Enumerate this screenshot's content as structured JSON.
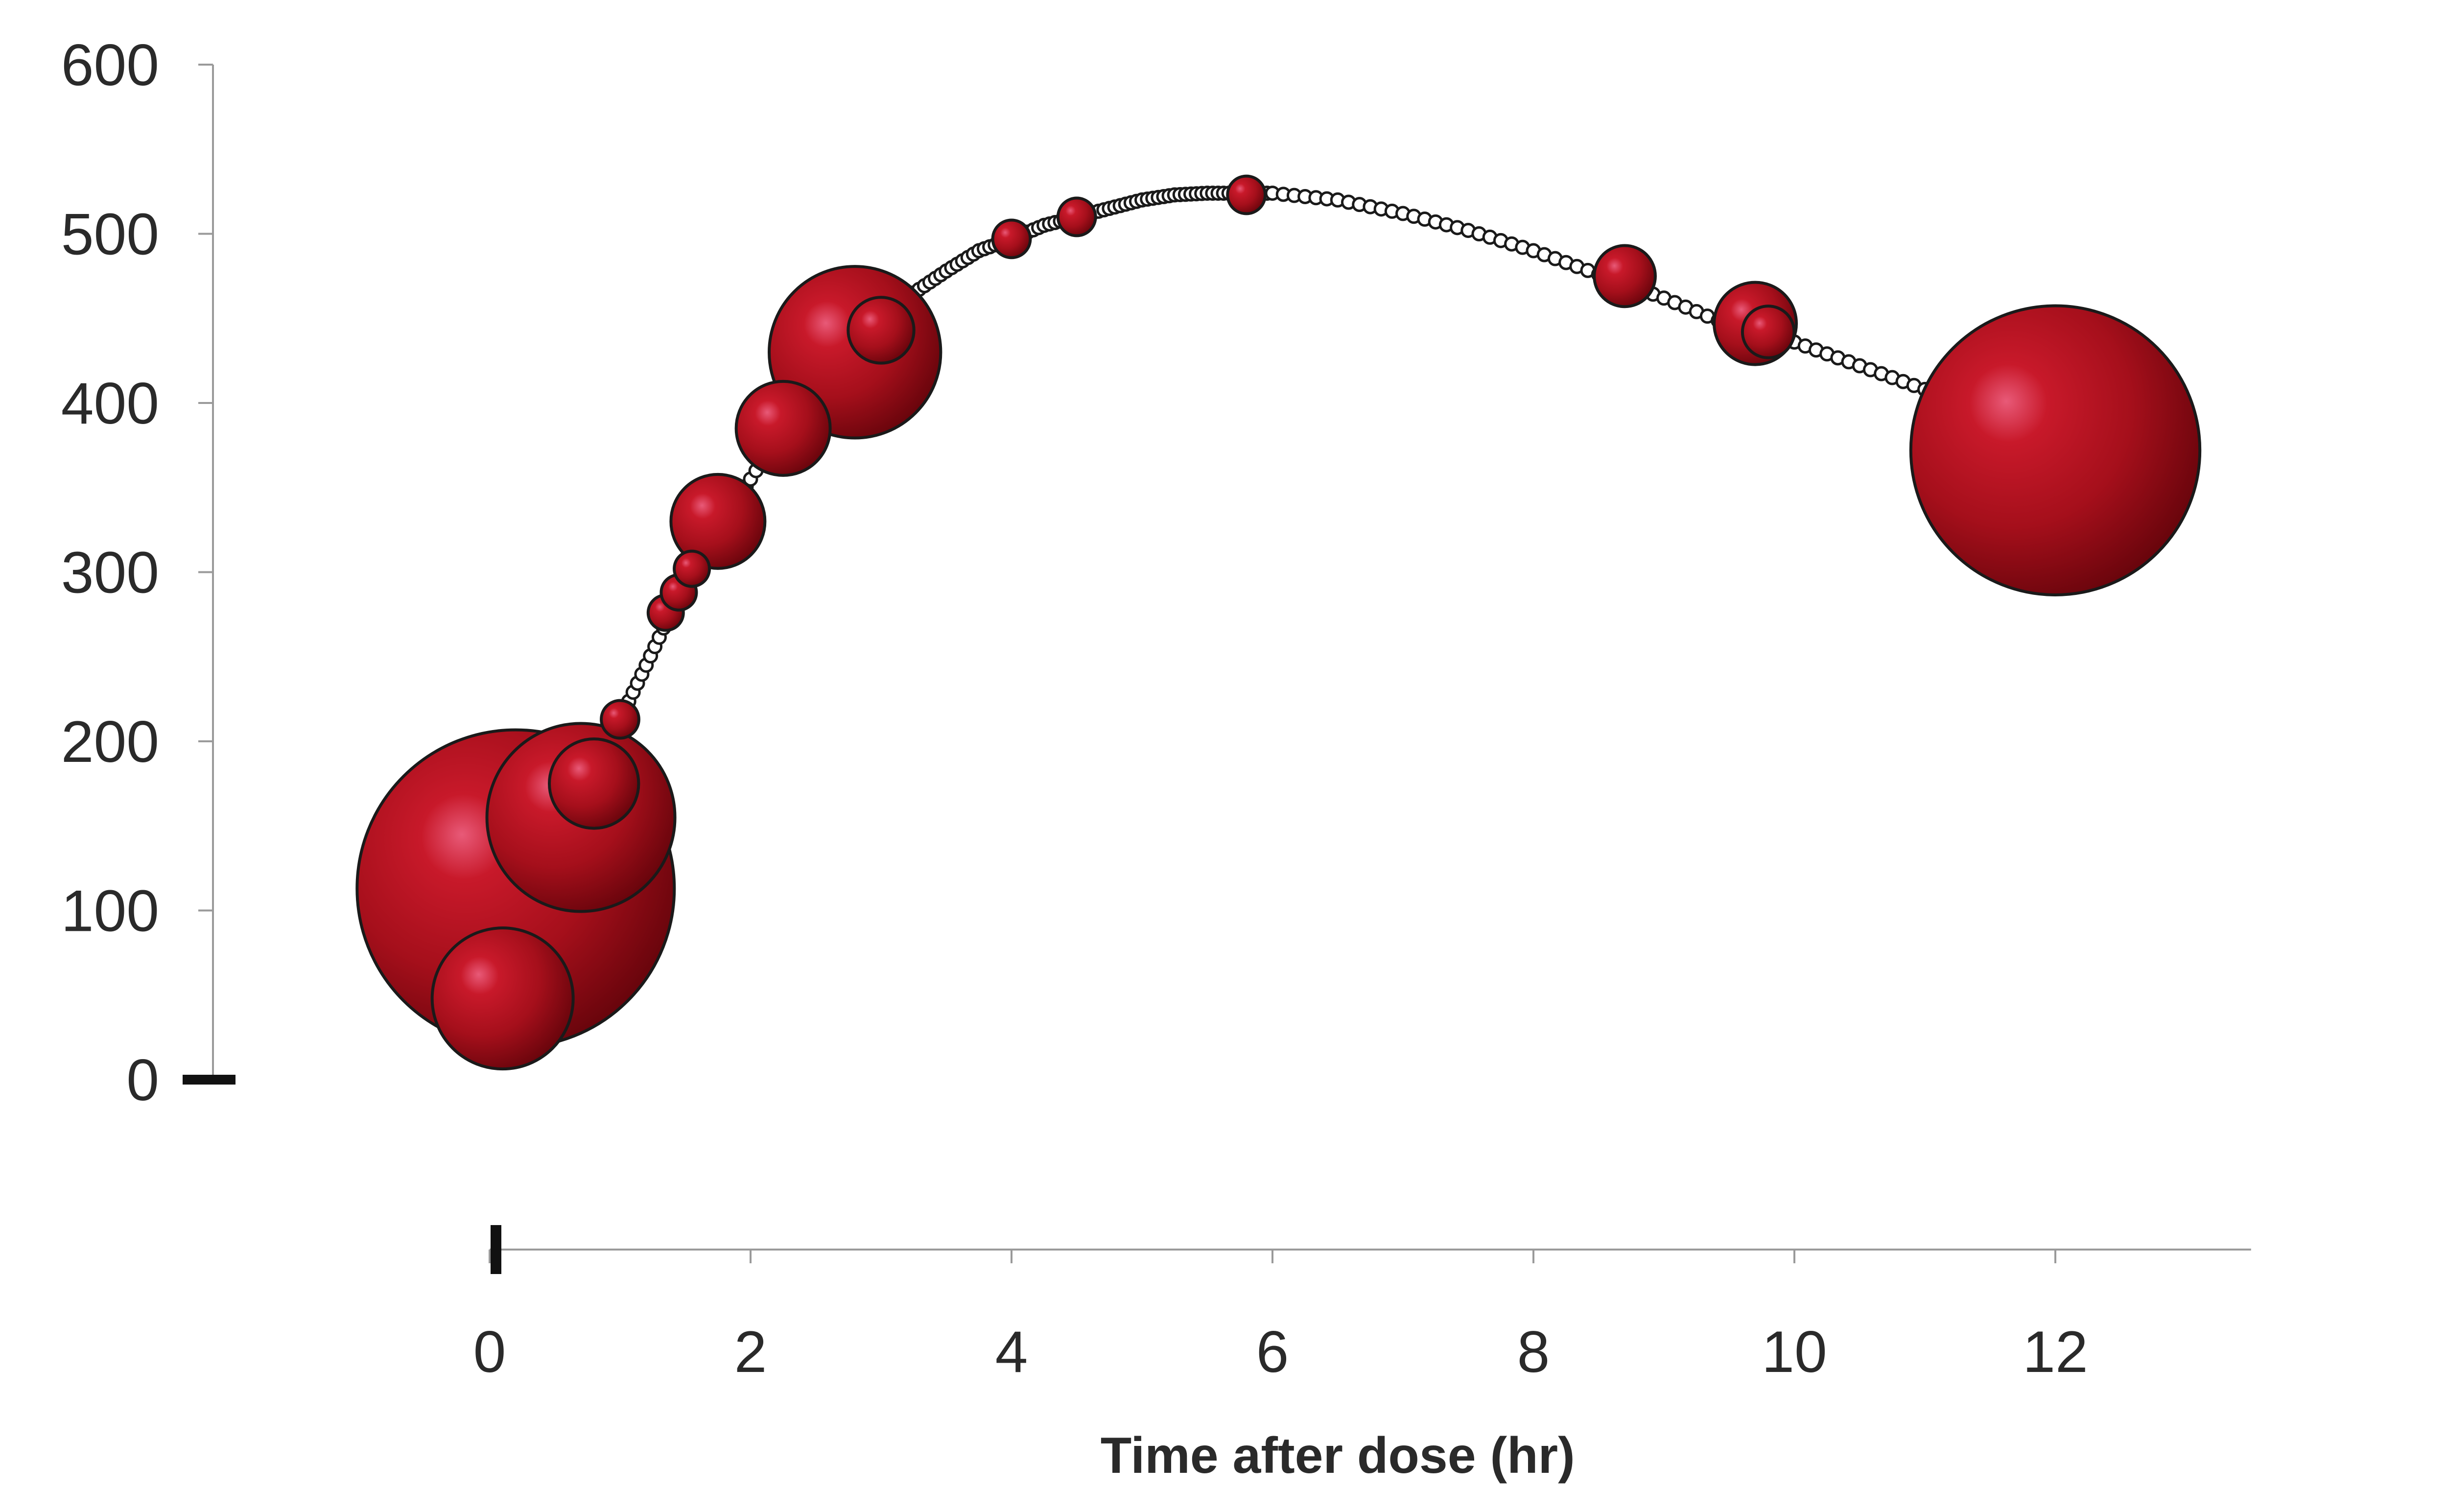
{
  "chart_data": {
    "type": "scatter",
    "subtype": "bubble-over-curve",
    "title": "",
    "xlabel": "Time after dose (hr)",
    "ylabel": "",
    "xlim": [
      0,
      13.5
    ],
    "ylim": [
      0,
      600
    ],
    "x_ticks": [
      0,
      2,
      4,
      6,
      8,
      10,
      12
    ],
    "y_ticks": [
      0,
      100,
      200,
      300,
      400,
      500,
      600
    ],
    "grid": false,
    "legend": "none",
    "colors": {
      "bubble": "#b3121d",
      "bubble_dark": "#5a0208",
      "bubble_highlight": "#e85a78",
      "curve": "#1a1a1a",
      "axis": "#9a9a9a",
      "text": "#2a2a2a"
    },
    "curve": {
      "x": [
        1.0,
        1.2,
        1.4,
        1.6,
        1.8,
        2.0,
        2.25,
        2.5,
        2.75,
        3.0,
        3.25,
        3.5,
        3.75,
        4.0,
        4.25,
        4.5,
        4.75,
        5.0,
        5.25,
        5.5,
        5.75,
        6.0,
        6.5,
        7.0,
        7.5,
        8.0,
        8.5,
        9.0,
        9.5,
        10.0,
        10.5,
        11.0
      ],
      "y": [
        213,
        245,
        278,
        305,
        330,
        355,
        385,
        412,
        433,
        452,
        465,
        478,
        490,
        497,
        505,
        510,
        515,
        520,
        523,
        524,
        524,
        524,
        520,
        512,
        502,
        490,
        476,
        462,
        446,
        436,
        422,
        408
      ]
    },
    "bubbles": [
      {
        "x": 0.1,
        "y": 48,
        "size": 0.6
      },
      {
        "x": 0.2,
        "y": 113,
        "size": 1.35
      },
      {
        "x": 0.7,
        "y": 155,
        "size": 0.8
      },
      {
        "x": 0.8,
        "y": 175,
        "size": 0.38
      },
      {
        "x": 1.0,
        "y": 213,
        "size": 0.16
      },
      {
        "x": 1.35,
        "y": 276,
        "size": 0.15
      },
      {
        "x": 1.45,
        "y": 288,
        "size": 0.15
      },
      {
        "x": 1.55,
        "y": 302,
        "size": 0.15
      },
      {
        "x": 1.75,
        "y": 330,
        "size": 0.4
      },
      {
        "x": 2.25,
        "y": 385,
        "size": 0.4
      },
      {
        "x": 2.8,
        "y": 430,
        "size": 0.73
      },
      {
        "x": 3.0,
        "y": 443,
        "size": 0.28
      },
      {
        "x": 4.0,
        "y": 497,
        "size": 0.16
      },
      {
        "x": 4.5,
        "y": 510,
        "size": 0.16
      },
      {
        "x": 5.8,
        "y": 523,
        "size": 0.16
      },
      {
        "x": 8.7,
        "y": 475,
        "size": 0.26
      },
      {
        "x": 9.7,
        "y": 447,
        "size": 0.35
      },
      {
        "x": 9.8,
        "y": 442,
        "size": 0.22
      },
      {
        "x": 12.0,
        "y": 372,
        "size": 1.23
      }
    ]
  }
}
